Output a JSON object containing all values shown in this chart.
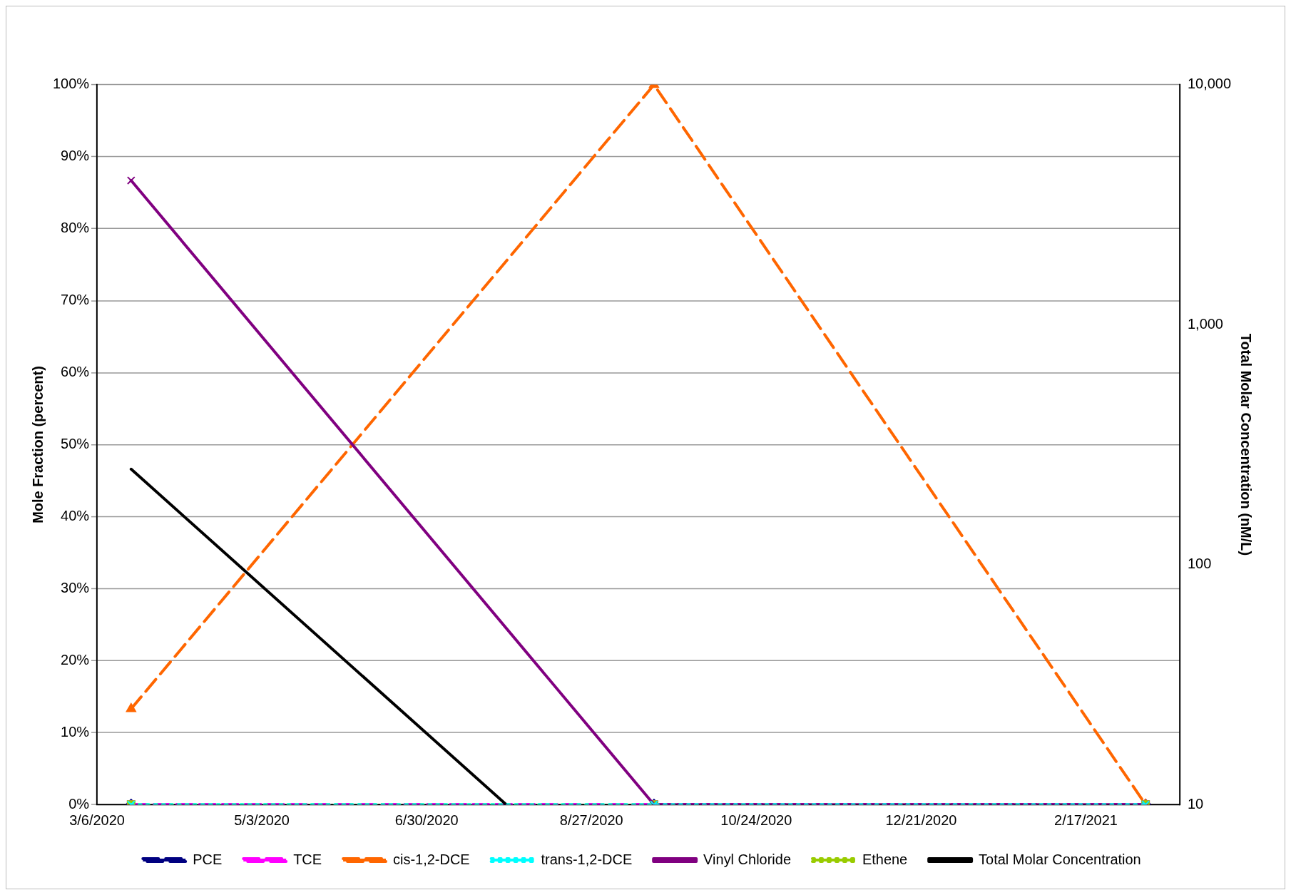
{
  "chart_data": {
    "type": "line",
    "ylabel": "Mole Fraction (percent)",
    "y2label": "Total Molar Concentration (nM/L)",
    "x": [
      "2020-03-18",
      "2020-09-18",
      "2021-03-10"
    ],
    "xlim": [
      "2020-03-06",
      "2021-03-22"
    ],
    "xticks": [
      {
        "value": "2020-03-06",
        "label": "3/6/2020"
      },
      {
        "value": "2020-05-03",
        "label": "5/3/2020"
      },
      {
        "value": "2020-06-30",
        "label": "6/30/2020"
      },
      {
        "value": "2020-08-27",
        "label": "8/27/2020"
      },
      {
        "value": "2020-10-24",
        "label": "10/24/2020"
      },
      {
        "value": "2020-12-21",
        "label": "12/21/2020"
      },
      {
        "value": "2021-02-17",
        "label": "2/17/2021"
      }
    ],
    "ylim": [
      0,
      100
    ],
    "yticks": [
      {
        "value": 0,
        "label": "0%"
      },
      {
        "value": 10,
        "label": "10%"
      },
      {
        "value": 20,
        "label": "20%"
      },
      {
        "value": 30,
        "label": "30%"
      },
      {
        "value": 40,
        "label": "40%"
      },
      {
        "value": 50,
        "label": "50%"
      },
      {
        "value": 60,
        "label": "60%"
      },
      {
        "value": 70,
        "label": "70%"
      },
      {
        "value": 80,
        "label": "80%"
      },
      {
        "value": 90,
        "label": "90%"
      },
      {
        "value": 100,
        "label": "100%"
      }
    ],
    "y2lim": [
      10,
      10000
    ],
    "y2ticks": [
      10,
      100,
      {
        "value": 1000,
        "label": "1,000"
      },
      {
        "value": 10000,
        "label": "10,000"
      }
    ],
    "log": "y2",
    "grid": "y",
    "legend": "bottom",
    "series": [
      {
        "name": "PCE",
        "color": "#000080",
        "values": [
          0,
          0,
          0
        ],
        "marker": "diamond",
        "line_style": "dashed"
      },
      {
        "name": "TCE",
        "color": "#ff00ff",
        "values": [
          0,
          0,
          0
        ],
        "marker": "square",
        "line_style": "dashed"
      },
      {
        "name": "cis-1,2-DCE",
        "color": "#ff6600",
        "values": [
          13.3,
          100,
          0
        ],
        "marker": "triangle",
        "line_style": "dashed"
      },
      {
        "name": "trans-1,2-DCE",
        "color": "#00ffff",
        "values": [
          0,
          0,
          0
        ],
        "marker": "cross",
        "line_style": "dotted"
      },
      {
        "name": "Vinyl Chloride",
        "color": "#800080",
        "values": [
          86.7,
          0,
          0
        ],
        "marker": "cross",
        "line_style": "solid"
      },
      {
        "name": "Ethene",
        "color": "#99cc00",
        "values": [
          0,
          0,
          0
        ],
        "marker": "square",
        "line_style": "dotted"
      },
      {
        "name": "Total Molar Concentration",
        "color": "#000000",
        "x": [
          "2020-03-18",
          "2020-07-28"
        ],
        "values": [
          250,
          10
        ],
        "marker": "none",
        "line_style": "solid",
        "axis": "y2"
      }
    ]
  }
}
